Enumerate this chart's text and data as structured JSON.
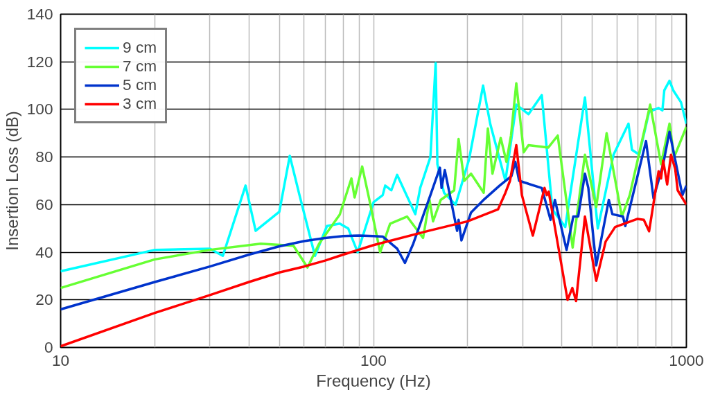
{
  "chart_data": {
    "type": "line",
    "xlabel": "Frequency (Hz)",
    "ylabel": "Insertion Loss (dB)",
    "log": "x",
    "xlim": [
      10,
      1000
    ],
    "ylim": [
      0,
      140
    ],
    "xticks": [
      10,
      {
        "value": 20,
        "label": null
      },
      {
        "value": 30,
        "label": null
      },
      {
        "value": 40,
        "label": null
      },
      {
        "value": 50,
        "label": null
      },
      {
        "value": 60,
        "label": null
      },
      {
        "value": 70,
        "label": null
      },
      {
        "value": 80,
        "label": null
      },
      {
        "value": 90,
        "label": null
      },
      100,
      {
        "value": 200,
        "label": null
      },
      {
        "value": 300,
        "label": null
      },
      {
        "value": 400,
        "label": null
      },
      {
        "value": 500,
        "label": null
      },
      {
        "value": 600,
        "label": null
      },
      {
        "value": 700,
        "label": null
      },
      {
        "value": 800,
        "label": null
      },
      {
        "value": 900,
        "label": null
      },
      1000
    ],
    "yticks": [
      0,
      20,
      40,
      60,
      80,
      100,
      120,
      140
    ],
    "grid": true,
    "legend": "top left",
    "line_style": "solid",
    "marker": "none",
    "series": [
      {
        "name": "9 cm",
        "color": "#00ffff",
        "x": [
          10,
          20,
          30,
          33,
          39,
          42,
          50,
          54,
          58,
          65,
          71,
          78,
          83,
          89,
          100,
          107,
          109,
          114,
          119,
          136,
          141,
          152,
          158,
          160,
          168,
          183,
          202,
          224,
          236,
          264,
          286,
          313,
          345,
          373,
          410,
          474,
          521,
          549,
          585,
          653,
          670,
          707,
          760,
          815,
          838,
          850,
          883,
          908,
          961,
          1000
        ],
        "values": [
          32,
          41,
          41.5,
          38.5,
          68,
          49,
          57,
          80.5,
          64,
          38.5,
          51,
          52,
          50,
          40,
          61,
          64,
          68,
          66,
          72.5,
          56,
          67,
          80,
          119.5,
          77,
          65,
          60,
          79,
          110,
          94,
          70,
          102,
          98,
          106,
          58,
          50.6,
          105,
          50,
          64,
          81,
          94,
          83,
          81,
          99,
          100.6,
          99.6,
          108,
          112,
          108,
          103,
          94
        ]
      },
      {
        "name": "7 cm",
        "color": "#66ff33",
        "x": [
          10,
          20,
          30,
          43.6,
          55.5,
          61.5,
          67,
          78,
          85,
          87,
          92,
          97,
          105,
          113,
          128,
          144,
          151,
          155,
          164,
          181,
          187,
          195,
          205,
          225,
          232,
          240,
          255,
          266,
          275,
          286,
          302,
          313,
          362,
          388,
          433,
          474,
          515,
          556,
          622,
          659,
          766,
          830,
          883,
          914,
          1000
        ],
        "values": [
          25,
          37,
          41,
          43.6,
          42.7,
          33.6,
          43.6,
          55.8,
          71,
          63,
          76,
          62,
          40,
          52,
          55,
          46,
          62,
          53,
          62,
          66,
          87.6,
          70,
          73,
          65,
          92,
          73,
          88,
          78,
          89,
          111,
          82,
          85,
          84,
          89,
          42,
          81,
          59,
          90,
          55,
          64,
          102,
          77,
          94,
          80,
          92.7
        ]
      },
      {
        "name": "5 cm",
        "color": "#0033cc",
        "x": [
          10,
          20,
          30,
          40,
          50,
          60,
          70,
          80,
          90,
          100,
          107,
          119,
          126,
          134,
          152,
          163,
          165,
          169,
          185,
          187,
          191,
          205,
          224,
          253,
          276,
          284,
          292,
          345,
          368,
          380,
          414,
          435,
          451,
          474,
          486,
          515,
          565,
          580,
          627,
          638,
          743,
          785,
          843,
          883,
          971,
          1000
        ],
        "values": [
          16,
          27.5,
          34,
          39,
          42.5,
          44.7,
          46,
          46.8,
          47,
          46.8,
          46.6,
          41.5,
          35.5,
          43.6,
          64,
          75.5,
          67,
          74.5,
          49,
          53.6,
          45,
          56.7,
          61.8,
          68,
          72,
          78,
          70,
          67,
          53.6,
          62,
          41,
          55,
          55,
          73,
          67,
          34.5,
          62,
          56,
          55,
          51,
          86.7,
          62.7,
          77,
          90.6,
          64,
          68
        ]
      },
      {
        "name": "3 cm",
        "color": "#ff0000",
        "x": [
          10,
          20,
          30,
          40,
          50,
          60,
          70,
          80,
          100,
          150,
          200,
          250,
          264,
          273,
          286,
          298,
          323,
          352,
          358,
          363,
          388,
          417,
          432,
          444,
          474,
          515,
          552,
          592,
          698,
          731,
          760,
          815,
          830,
          843,
          868,
          893,
          921,
          938,
          1000
        ],
        "values": [
          0.5,
          14.5,
          22,
          27.5,
          31.5,
          34,
          36.5,
          39,
          43,
          49,
          53,
          58,
          65,
          70,
          85,
          64,
          47,
          67,
          64,
          65.5,
          43.6,
          20,
          25,
          19.5,
          55,
          28,
          44.5,
          50.6,
          54,
          53.6,
          48.8,
          74,
          71,
          78.5,
          68.5,
          81,
          75,
          66,
          60
        ]
      }
    ]
  }
}
